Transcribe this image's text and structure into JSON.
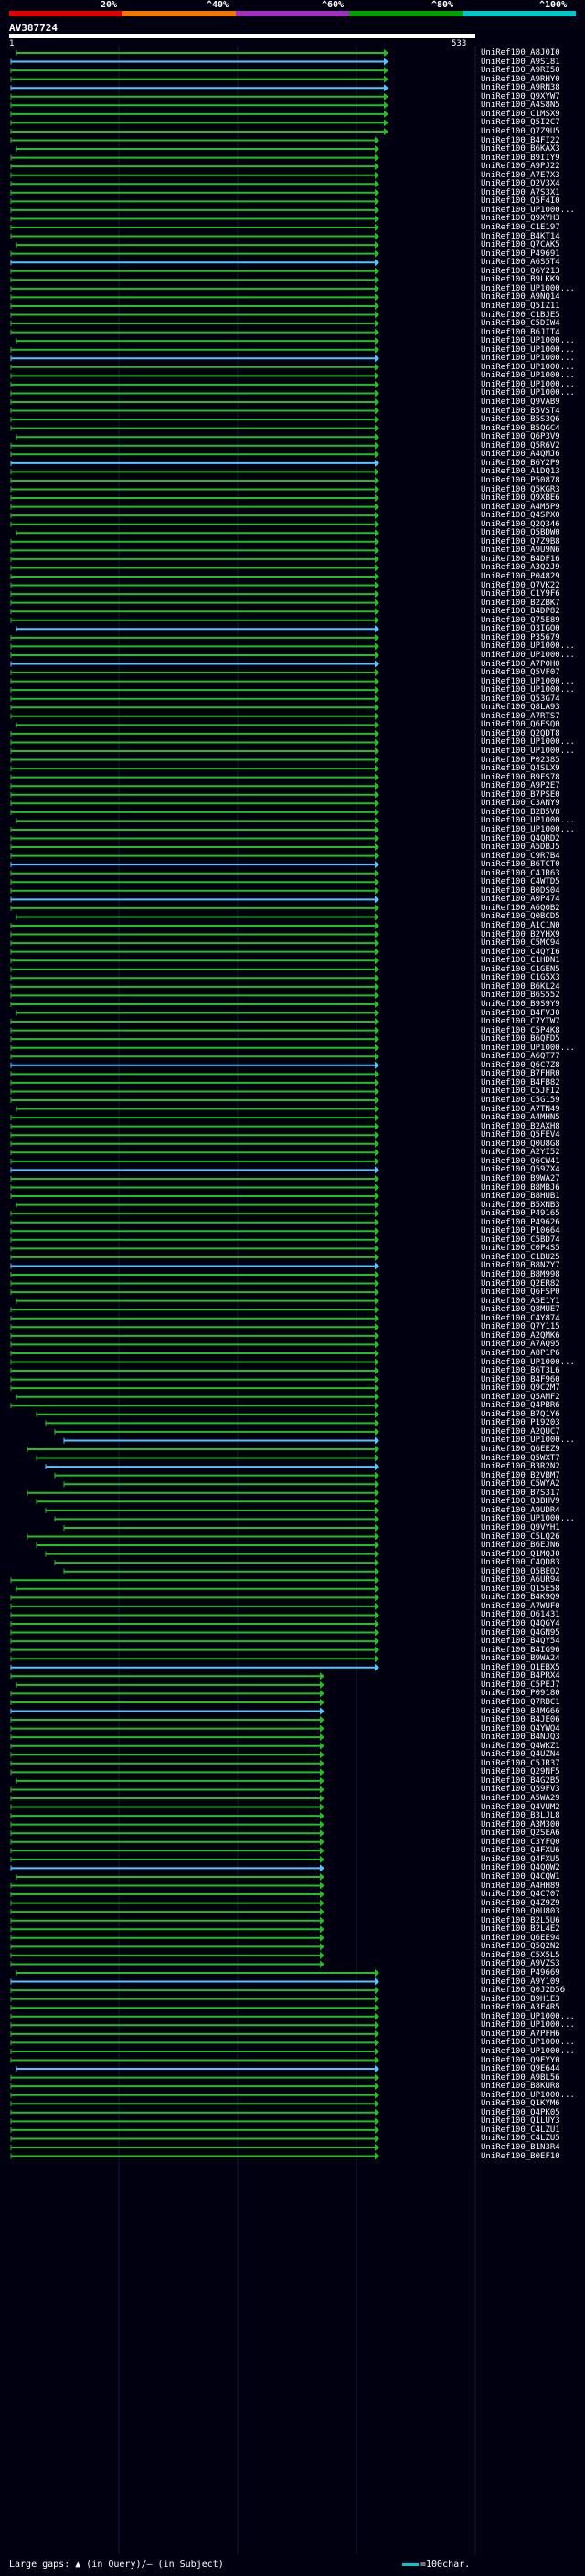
{
  "legend": {
    "labels": [
      "20%",
      "^40%",
      "^60%",
      "^80%",
      "^100%"
    ],
    "colors": [
      "#e00000",
      "#f07800",
      "#a030c0",
      "#00a000",
      "#00c8c8"
    ]
  },
  "query": {
    "title": "AV387724",
    "start": "1",
    "end": "533"
  },
  "hits": [
    "UniRef100_A8J0I0",
    "UniRef100_A9S181",
    "UniRef100_A9RI50",
    "UniRef100_A9RHY0",
    "UniRef100_A9RN38",
    "UniRef100_Q9XYW7",
    "UniRef100_A4S8N5",
    "UniRef100_C1MSX9",
    "UniRef100_Q5I2C7",
    "UniRef100_Q7Z9U5",
    "UniRef100_B4FI22",
    "UniRef100_B6KAX3",
    "UniRef100_B9IIY9",
    "UniRef100_A9PJ22",
    "UniRef100_A7E7X3",
    "UniRef100_Q2V3X4",
    "UniRef100_A7S3X1",
    "UniRef100_Q5F4I0",
    "UniRef100_UP1000...",
    "UniRef100_Q9XYH3",
    "UniRef100_C1E197",
    "UniRef100_B4KT14",
    "UniRef100_Q7CAK5",
    "UniRef100_P49691",
    "UniRef100_A6S5T4",
    "UniRef100_Q6Y213",
    "UniRef100_B9LKK9",
    "UniRef100_UP1000...",
    "UniRef100_A9NQ14",
    "UniRef100_Q5IZ11",
    "UniRef100_C1BJE5",
    "UniRef100_C5DIW4",
    "UniRef100_B6JIT4",
    "UniRef100_UP1000...",
    "UniRef100_UP1000...",
    "UniRef100_UP1000...",
    "UniRef100_UP1000...",
    "UniRef100_UP1000...",
    "UniRef100_UP1000...",
    "UniRef100_UP1000...",
    "UniRef100_Q9VAB9",
    "UniRef100_B5VST4",
    "UniRef100_B5S3Q6",
    "UniRef100_B5QGC4",
    "UniRef100_Q6P3V9",
    "UniRef100_Q5R6V2",
    "UniRef100_A4QMJ6",
    "UniRef100_B6Y2P9",
    "UniRef100_A1DQ13",
    "UniRef100_P50878",
    "UniRef100_Q5KGR3",
    "UniRef100_Q9XBE6",
    "UniRef100_A4M5P9",
    "UniRef100_Q4SPX0",
    "UniRef100_Q2Q346",
    "UniRef100_Q5BDW0",
    "UniRef100_Q7Z9B8",
    "UniRef100_A9U9N6",
    "UniRef100_B4DF16",
    "UniRef100_A3Q2J9",
    "UniRef100_P04829",
    "UniRef100_Q7VK22",
    "UniRef100_C1Y9F6",
    "UniRef100_B2ZBK7",
    "UniRef100_B4DP82",
    "UniRef100_Q75E89",
    "UniRef100_Q3IGQ0",
    "UniRef100_P35679",
    "UniRef100_UP1000...",
    "UniRef100_UP1000...",
    "UniRef100_A7P0H0",
    "UniRef100_Q5VF07",
    "UniRef100_UP1000...",
    "UniRef100_UP1000...",
    "UniRef100_Q53G74",
    "UniRef100_Q8LA93",
    "UniRef100_A7RTS7",
    "UniRef100_Q6FSQ0",
    "UniRef100_Q2QDT8",
    "UniRef100_UP1000...",
    "UniRef100_UP1000...",
    "UniRef100_P02385",
    "UniRef100_Q4SLX9",
    "UniRef100_B9FS78",
    "UniRef100_A9P2E7",
    "UniRef100_B7PSE0",
    "UniRef100_C3ANY9",
    "UniRef100_B2B5V8",
    "UniRef100_UP1000...",
    "UniRef100_UP1000...",
    "UniRef100_Q4QRD2",
    "UniRef100_A5DBJ5",
    "UniRef100_C9R7B4",
    "UniRef100_B6TCT0",
    "UniRef100_C4JR63",
    "UniRef100_C4WTD5",
    "UniRef100_B0DS04",
    "UniRef100_A0P474",
    "UniRef100_A6Q0B2",
    "UniRef100_Q0BCD5",
    "UniRef100_A1C1N0",
    "UniRef100_B2YHX9",
    "UniRef100_C5MC94",
    "UniRef100_C4QYI6",
    "UniRef100_C1HDN1",
    "UniRef100_C1GEN5",
    "UniRef100_C1G5X3",
    "UniRef100_B6KL24",
    "UniRef100_B6S552",
    "UniRef100_B9S9Y9",
    "UniRef100_B4FVJ0",
    "UniRef100_C7YTW7",
    "UniRef100_C5P4K8",
    "UniRef100_B6QFD5",
    "UniRef100_UP1000...",
    "UniRef100_A6QT77",
    "UniRef100_Q6C7Z8",
    "UniRef100_B7FHR0",
    "UniRef100_B4FB82",
    "UniRef100_C5JFI2",
    "UniRef100_C5G159",
    "UniRef100_A7TN49",
    "UniRef100_A4MHN5",
    "UniRef100_B2AXH8",
    "UniRef100_Q5FEV4",
    "UniRef100_Q0U8G8",
    "UniRef100_A2YI52",
    "UniRef100_Q6CW41",
    "UniRef100_Q59ZX4",
    "UniRef100_B9WA27",
    "UniRef100_B8MBJ6",
    "UniRef100_B8HUB1",
    "UniRef100_B5XNB3",
    "UniRef100_P49165",
    "UniRef100_P49626",
    "UniRef100_P10664",
    "UniRef100_C5BD74",
    "UniRef100_C0P4S5",
    "UniRef100_C1BU25",
    "UniRef100_B8NZY7",
    "UniRef100_B8M998",
    "UniRef100_Q2ER82",
    "UniRef100_Q6FSP0",
    "UniRef100_A5E1Y1",
    "UniRef100_Q8MUE7",
    "UniRef100_C4Y874",
    "UniRef100_Q7Y115",
    "UniRef100_A2QMK6",
    "UniRef100_A7AQ95",
    "UniRef100_A8P1P6",
    "UniRef100_UP1000...",
    "UniRef100_B6T3L6",
    "UniRef100_B4F960",
    "UniRef100_Q9C2M7",
    "UniRef100_Q5AMF2",
    "UniRef100_Q4PBR6",
    "UniRef100_B7Q1Y6",
    "UniRef100_P19203",
    "UniRef100_A2QUC7",
    "UniRef100_UP1000...",
    "UniRef100_Q6EEZ9",
    "UniRef100_Q5WXT7",
    "UniRef100_B3R2N2",
    "UniRef100_B2VBM7",
    "UniRef100_C5WYA2",
    "UniRef100_B7S317",
    "UniRef100_Q3BHV9",
    "UniRef100_A9UDR4",
    "UniRef100_UP1000...",
    "UniRef100_Q9VYH1",
    "UniRef100_C5LQ26",
    "UniRef100_B6EJN6",
    "UniRef100_Q1MQJ0",
    "UniRef100_C4QD83",
    "UniRef100_Q5BEQ2",
    "UniRef100_A6UR94",
    "UniRef100_Q15E58",
    "UniRef100_B4K9Q9",
    "UniRef100_A7WUF0",
    "UniRef100_Q61431",
    "UniRef100_Q4QGY4",
    "UniRef100_Q4GN95",
    "UniRef100_B4QY54",
    "UniRef100_B4IG96",
    "UniRef100_B9WA24",
    "UniRef100_Q1EBX5",
    "UniRef100_B4PRX4",
    "UniRef100_C5PEJ7",
    "UniRef100_P09180",
    "UniRef100_Q7RBC1",
    "UniRef100_B4MG66",
    "UniRef100_B4JE06",
    "UniRef100_Q4YWQ4",
    "UniRef100_B4NJQ3",
    "UniRef100_Q4WKZ1",
    "UniRef100_Q4UZN4",
    "UniRef100_C5JR37",
    "UniRef100_Q29NF5",
    "UniRef100_B4G2B5",
    "UniRef100_Q59FV3",
    "UniRef100_A5WA29",
    "UniRef100_Q4VUM2",
    "UniRef100_B3LJL8",
    "UniRef100_A3M300",
    "UniRef100_Q2SEA6",
    "UniRef100_C3YFQ0",
    "UniRef100_Q4FXU6",
    "UniRef100_Q4FXU5",
    "UniRef100_Q4QQW2",
    "UniRef100_Q4CQW1",
    "UniRef100_A4HH89",
    "UniRef100_Q4C707",
    "UniRef100_Q4Z9Z9",
    "UniRef100_Q0U803",
    "UniRef100_B2L5U6",
    "UniRef100_B2L4E2",
    "UniRef100_Q6EE94",
    "UniRef100_Q5Q2N2",
    "UniRef100_C5X5L5",
    "UniRef100_A9VZS3",
    "UniRef100_P49669",
    "UniRef100_A9Y109",
    "UniRef100_Q0J2D56",
    "UniRef100_B9H1E3",
    "UniRef100_A3F4R5",
    "UniRef100_UP1000...",
    "UniRef100_UP1000...",
    "UniRef100_A7PFH6",
    "UniRef100_UP1000...",
    "UniRef100_UP1000...",
    "UniRef100_Q9EYY0",
    "UniRef100_Q9E644",
    "UniRef100_A9BL56",
    "UniRef100_B8KUR8",
    "UniRef100_UP1000...",
    "UniRef100_Q1KYM6",
    "UniRef100_Q4PK05",
    "UniRef100_Q1LUY3",
    "UniRef100_C4LZU1",
    "UniRef100_C4LZU5",
    "UniRef100_B1N3R4",
    "UniRef100_B0EF10"
  ],
  "footer": {
    "text": "Large gaps: ▲ (in Query)/— (in Subject)",
    "scale_text": "=100char."
  }
}
